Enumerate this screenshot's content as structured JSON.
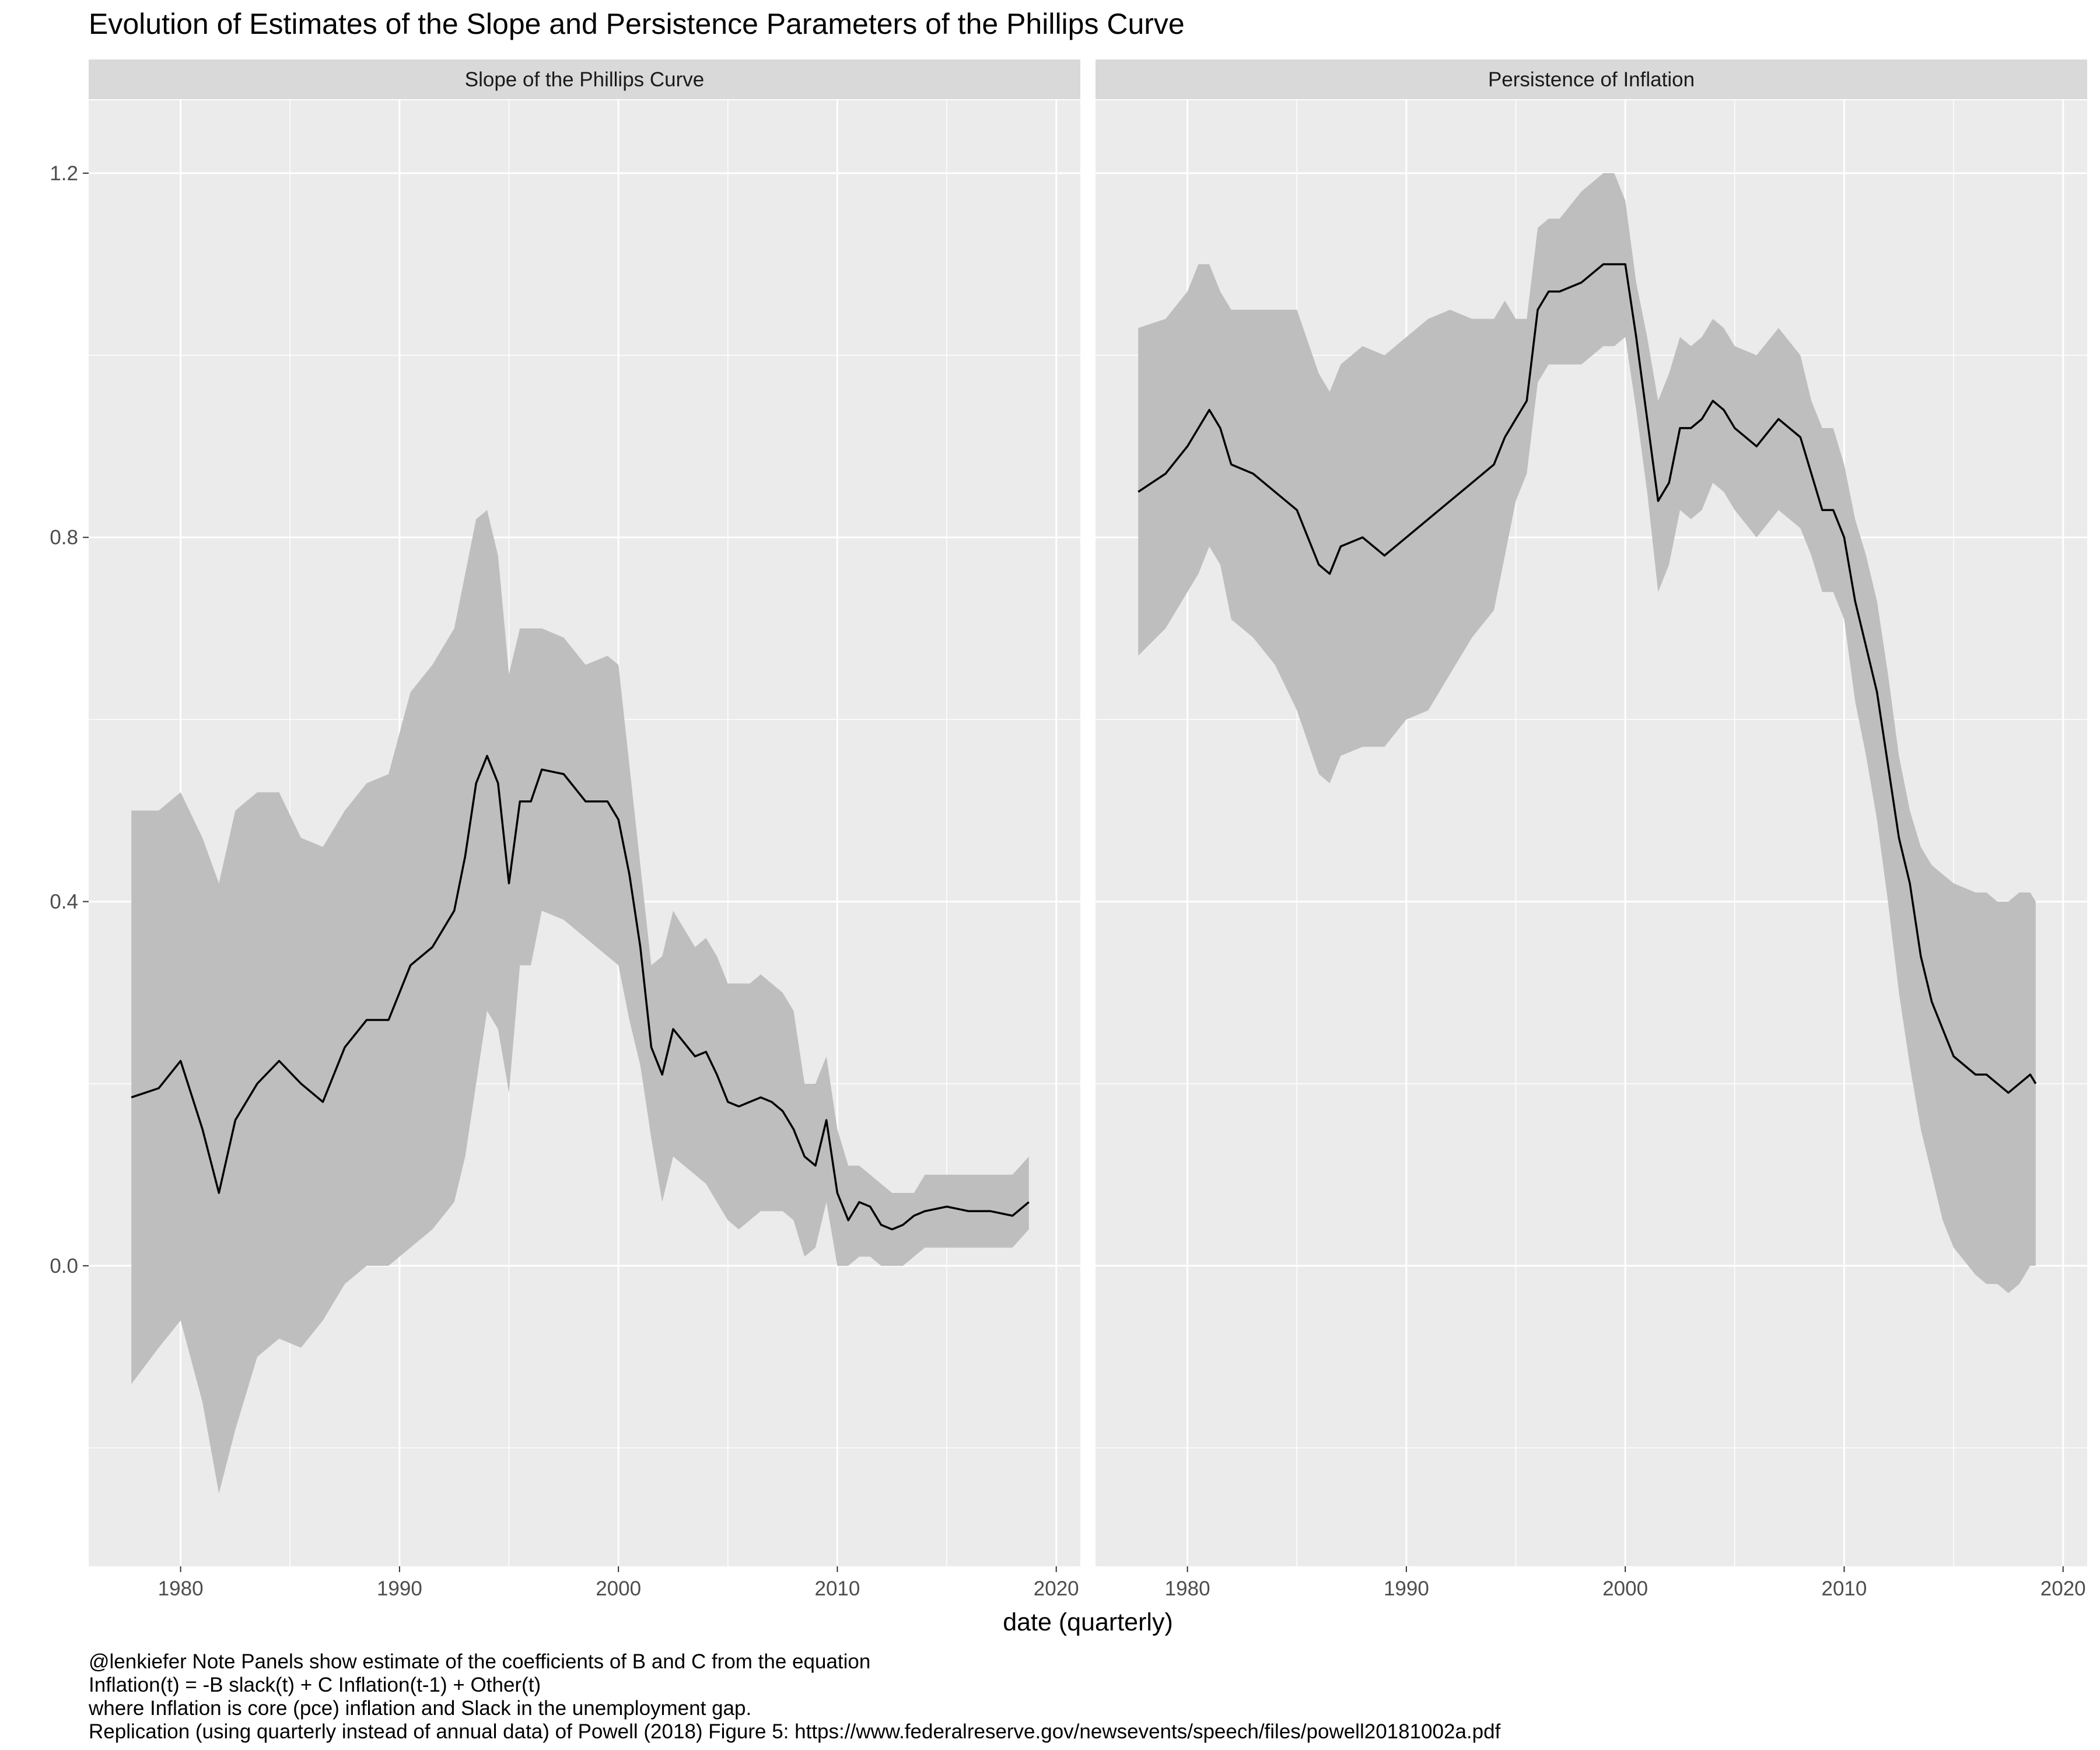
{
  "chart_data": {
    "type": "area",
    "title": "Evolution of Estimates of the Slope and Persistence Parameters of the Phillips Curve",
    "xlabel": "date (quarterly)",
    "ylabel": "",
    "x_ticks": [
      "1980",
      "1990",
      "2000",
      "2010",
      "2020"
    ],
    "x_tick_values": [
      1980,
      1990,
      2000,
      2010,
      2020
    ],
    "xlim": [
      1975.8,
      2021.1
    ],
    "y_ticks": [
      "0.0",
      "0.4",
      "0.8",
      "1.2"
    ],
    "y_tick_values": [
      0.0,
      0.4,
      0.8,
      1.2
    ],
    "ylim": [
      -0.33,
      1.28
    ],
    "grid": true,
    "legend": "none",
    "colors": {
      "panel_bg": "#ebebeb",
      "strip_bg": "#d9d9d9",
      "grid": "#ffffff",
      "band": "#bebebe",
      "line": "#000000",
      "text": "#4d4d4d"
    },
    "panels": [
      {
        "label": "Slope of the Phillips Curve",
        "x": [
          1977.75,
          1979,
          1980,
          1981,
          1981.75,
          1982.5,
          1983.5,
          1984.5,
          1985.5,
          1986.5,
          1987.5,
          1988.5,
          1989.5,
          1990.5,
          1991.5,
          1992.5,
          1993,
          1993.5,
          1994,
          1994.5,
          1995,
          1995.5,
          1996,
          1996.5,
          1997.5,
          1998.5,
          1999.5,
          2000,
          2000.5,
          2001,
          2001.5,
          2002,
          2002.5,
          2003,
          2003.5,
          2004,
          2004.5,
          2005,
          2005.5,
          2006,
          2006.5,
          2007,
          2007.5,
          2008,
          2008.5,
          2009,
          2009.5,
          2010,
          2010.5,
          2011,
          2011.5,
          2012,
          2012.5,
          2013,
          2013.5,
          2014,
          2015,
          2016,
          2017,
          2018,
          2018.75
        ],
        "estimate": [
          0.185,
          0.195,
          0.225,
          0.15,
          0.08,
          0.16,
          0.2,
          0.225,
          0.2,
          0.18,
          0.24,
          0.27,
          0.27,
          0.33,
          0.35,
          0.39,
          0.45,
          0.53,
          0.56,
          0.53,
          0.42,
          0.51,
          0.51,
          0.545,
          0.54,
          0.51,
          0.51,
          0.49,
          0.43,
          0.35,
          0.24,
          0.21,
          0.26,
          0.245,
          0.23,
          0.235,
          0.21,
          0.18,
          0.175,
          0.18,
          0.185,
          0.18,
          0.17,
          0.15,
          0.12,
          0.11,
          0.16,
          0.08,
          0.05,
          0.07,
          0.065,
          0.045,
          0.04,
          0.045,
          0.055,
          0.06,
          0.065,
          0.06,
          0.06,
          0.055,
          0.07
        ],
        "upper": [
          0.5,
          0.5,
          0.52,
          0.47,
          0.42,
          0.5,
          0.52,
          0.52,
          0.47,
          0.46,
          0.5,
          0.53,
          0.54,
          0.63,
          0.66,
          0.7,
          0.76,
          0.82,
          0.83,
          0.78,
          0.65,
          0.7,
          0.7,
          0.7,
          0.69,
          0.66,
          0.67,
          0.66,
          0.55,
          0.44,
          0.33,
          0.34,
          0.39,
          0.37,
          0.35,
          0.36,
          0.34,
          0.31,
          0.31,
          0.31,
          0.32,
          0.31,
          0.3,
          0.28,
          0.2,
          0.2,
          0.23,
          0.15,
          0.11,
          0.11,
          0.1,
          0.09,
          0.08,
          0.08,
          0.08,
          0.1,
          0.1,
          0.1,
          0.1,
          0.1,
          0.12
        ],
        "lower": [
          -0.13,
          -0.09,
          -0.06,
          -0.15,
          -0.25,
          -0.18,
          -0.1,
          -0.08,
          -0.09,
          -0.06,
          -0.02,
          0.0,
          0.0,
          0.02,
          0.04,
          0.07,
          0.12,
          0.2,
          0.28,
          0.26,
          0.19,
          0.33,
          0.33,
          0.39,
          0.38,
          0.36,
          0.34,
          0.33,
          0.27,
          0.22,
          0.14,
          0.07,
          0.12,
          0.11,
          0.1,
          0.09,
          0.07,
          0.05,
          0.04,
          0.05,
          0.06,
          0.06,
          0.06,
          0.05,
          0.01,
          0.02,
          0.07,
          0.0,
          0.0,
          0.01,
          0.01,
          0.0,
          0.0,
          0.0,
          0.01,
          0.02,
          0.02,
          0.02,
          0.02,
          0.02,
          0.04
        ]
      },
      {
        "label": "Persistence of Inflation",
        "x": [
          1977.75,
          1979,
          1980,
          1980.5,
          1981,
          1981.5,
          1982,
          1983,
          1984,
          1985,
          1986,
          1986.5,
          1987,
          1988,
          1989,
          1990,
          1991,
          1992,
          1993,
          1994,
          1994.5,
          1995,
          1995.5,
          1996,
          1996.5,
          1997,
          1998,
          1999,
          1999.5,
          2000,
          2000.5,
          2001,
          2001.5,
          2002,
          2002.5,
          2003,
          2003.5,
          2004,
          2004.5,
          2005,
          2006,
          2007,
          2008,
          2008.5,
          2009,
          2009.5,
          2010,
          2010.5,
          2011,
          2011.5,
          2012,
          2012.5,
          2013,
          2013.5,
          2014,
          2014.5,
          2015,
          2016,
          2016.5,
          2017,
          2017.5,
          2018,
          2018.5,
          2018.75
        ],
        "estimate": [
          0.85,
          0.87,
          0.9,
          0.92,
          0.94,
          0.92,
          0.88,
          0.87,
          0.85,
          0.83,
          0.77,
          0.76,
          0.79,
          0.8,
          0.78,
          0.8,
          0.82,
          0.84,
          0.86,
          0.88,
          0.91,
          0.93,
          0.95,
          1.05,
          1.07,
          1.07,
          1.08,
          1.1,
          1.1,
          1.1,
          1.02,
          0.93,
          0.84,
          0.86,
          0.92,
          0.92,
          0.93,
          0.95,
          0.94,
          0.92,
          0.9,
          0.93,
          0.91,
          0.87,
          0.83,
          0.83,
          0.8,
          0.73,
          0.68,
          0.63,
          0.55,
          0.47,
          0.42,
          0.34,
          0.29,
          0.26,
          0.23,
          0.21,
          0.21,
          0.2,
          0.19,
          0.2,
          0.21,
          0.2
        ],
        "upper": [
          1.03,
          1.04,
          1.07,
          1.1,
          1.1,
          1.07,
          1.05,
          1.05,
          1.05,
          1.05,
          0.98,
          0.96,
          0.99,
          1.01,
          1.0,
          1.02,
          1.04,
          1.05,
          1.04,
          1.04,
          1.06,
          1.04,
          1.04,
          1.14,
          1.15,
          1.15,
          1.18,
          1.2,
          1.2,
          1.17,
          1.08,
          1.02,
          0.95,
          0.98,
          1.02,
          1.01,
          1.02,
          1.04,
          1.03,
          1.01,
          1.0,
          1.03,
          1.0,
          0.95,
          0.92,
          0.92,
          0.88,
          0.82,
          0.78,
          0.73,
          0.65,
          0.56,
          0.5,
          0.46,
          0.44,
          0.43,
          0.42,
          0.41,
          0.41,
          0.4,
          0.4,
          0.41,
          0.41,
          0.4
        ],
        "lower": [
          0.67,
          0.7,
          0.74,
          0.76,
          0.79,
          0.77,
          0.71,
          0.69,
          0.66,
          0.61,
          0.54,
          0.53,
          0.56,
          0.57,
          0.57,
          0.6,
          0.61,
          0.65,
          0.69,
          0.72,
          0.78,
          0.84,
          0.87,
          0.97,
          0.99,
          0.99,
          0.99,
          1.01,
          1.01,
          1.02,
          0.94,
          0.85,
          0.74,
          0.77,
          0.83,
          0.82,
          0.83,
          0.86,
          0.85,
          0.83,
          0.8,
          0.83,
          0.81,
          0.78,
          0.74,
          0.74,
          0.71,
          0.62,
          0.56,
          0.49,
          0.4,
          0.3,
          0.22,
          0.15,
          0.1,
          0.05,
          0.02,
          -0.01,
          -0.02,
          -0.02,
          -0.03,
          -0.02,
          0.0,
          0.0
        ]
      }
    ]
  },
  "caption_lines": [
    "@lenkiefer Note Panels show estimate of the coefficients of B and C from the equation",
    "Inflation(t) = -B slack(t) + C Inflation(t-1) + Other(t)",
    "where Inflation is core (pce) inflation and Slack in the unemployment gap.",
    "Replication (using quarterly instead of annual data) of Powell (2018) Figure 5: https://www.federalreserve.gov/newsevents/speech/files/powell20181002a.pdf"
  ]
}
